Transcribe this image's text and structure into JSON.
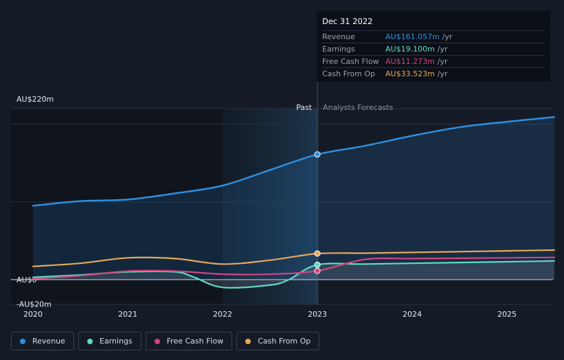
{
  "chart_data": {
    "type": "line",
    "x_ticks": [
      "2020",
      "2021",
      "2022",
      "2023",
      "2024",
      "2025"
    ],
    "y_ticks": [
      {
        "label": "AU$220m",
        "value": 220
      },
      {
        "label": "AU$0",
        "value": 0
      },
      {
        "label": "-AU$20m",
        "value": -20
      }
    ],
    "ylim": [
      -20,
      220
    ],
    "region_labels": {
      "past": "Past",
      "forecast": "Analysts Forecasts"
    },
    "divider_x": 2023.0,
    "shaded_past_start": 2022.0,
    "series": [
      {
        "name": "Revenue",
        "color": "#2e8fe0",
        "area": true,
        "points": [
          [
            2020.0,
            95
          ],
          [
            2020.5,
            101
          ],
          [
            2021.0,
            103
          ],
          [
            2021.5,
            111
          ],
          [
            2022.0,
            121
          ],
          [
            2022.5,
            141
          ],
          [
            2023.0,
            161
          ],
          [
            2023.5,
            172
          ],
          [
            2024.0,
            185
          ],
          [
            2024.5,
            196
          ],
          [
            2025.0,
            203
          ],
          [
            2025.5,
            209
          ]
        ]
      },
      {
        "name": "Earnings",
        "color": "#5ddcc7",
        "area": true,
        "points": [
          [
            2020.0,
            3
          ],
          [
            2020.5,
            6
          ],
          [
            2021.0,
            10
          ],
          [
            2021.5,
            10
          ],
          [
            2021.7,
            3
          ],
          [
            2022.0,
            -10
          ],
          [
            2022.5,
            -7
          ],
          [
            2022.7,
            0
          ],
          [
            2023.0,
            19.1
          ],
          [
            2023.5,
            20
          ],
          [
            2024.0,
            21
          ],
          [
            2024.5,
            22
          ],
          [
            2025.0,
            23
          ],
          [
            2025.5,
            24
          ]
        ]
      },
      {
        "name": "Free Cash Flow",
        "color": "#d0467f",
        "area": false,
        "points": [
          [
            2020.0,
            1
          ],
          [
            2020.5,
            5
          ],
          [
            2021.0,
            11
          ],
          [
            2021.5,
            11
          ],
          [
            2022.0,
            7
          ],
          [
            2022.5,
            7
          ],
          [
            2023.0,
            11.273
          ],
          [
            2023.5,
            26
          ],
          [
            2024.0,
            27
          ],
          [
            2024.5,
            27.5
          ],
          [
            2025.0,
            28
          ],
          [
            2025.5,
            28.5
          ]
        ]
      },
      {
        "name": "Cash From Op",
        "color": "#e8a85a",
        "area": false,
        "points": [
          [
            2020.0,
            17
          ],
          [
            2020.5,
            21
          ],
          [
            2021.0,
            28
          ],
          [
            2021.5,
            27
          ],
          [
            2022.0,
            20
          ],
          [
            2022.5,
            25
          ],
          [
            2023.0,
            33.523
          ],
          [
            2023.5,
            34
          ],
          [
            2024.0,
            35
          ],
          [
            2024.5,
            36
          ],
          [
            2025.0,
            37
          ],
          [
            2025.5,
            38
          ]
        ]
      }
    ],
    "highlight_x": 2023.0
  },
  "tooltip": {
    "date": "Dec 31 2022",
    "rows": [
      {
        "label": "Revenue",
        "value": "AU$161.057m",
        "unit": "/yr",
        "color": "#2e8fe0"
      },
      {
        "label": "Earnings",
        "value": "AU$19.100m",
        "unit": "/yr",
        "color": "#5ddcc7"
      },
      {
        "label": "Free Cash Flow",
        "value": "AU$11.273m",
        "unit": "/yr",
        "color": "#d0467f"
      },
      {
        "label": "Cash From Op",
        "value": "AU$33.523m",
        "unit": "/yr",
        "color": "#e8a85a"
      }
    ]
  },
  "legend": [
    {
      "label": "Revenue",
      "color": "#2e8fe0"
    },
    {
      "label": "Earnings",
      "color": "#5ddcc7"
    },
    {
      "label": "Free Cash Flow",
      "color": "#d0467f"
    },
    {
      "label": "Cash From Op",
      "color": "#e8a85a"
    }
  ]
}
